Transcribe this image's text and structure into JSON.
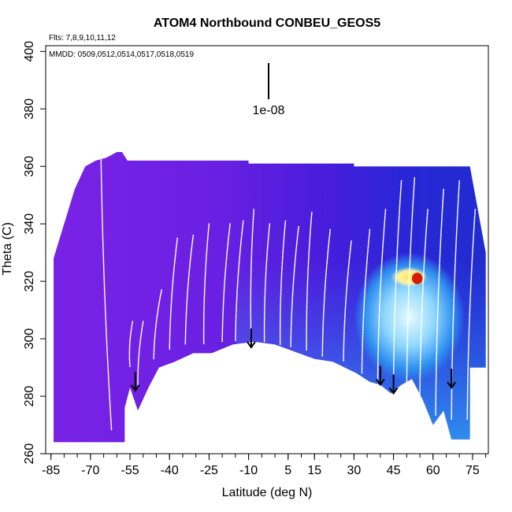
{
  "chart_data": {
    "type": "heatmap",
    "title": "ATOM4 Northbound CONBEU_GEOS5",
    "subtitle_flights": "Flts: 7,8,9,10,11,12",
    "subtitle_dates": "MMDD: 0509,0512,0514,0517,0518,0519",
    "xlabel": "Latitude (deg N)",
    "ylabel": "Theta (C)",
    "xlim": [
      -87,
      81
    ],
    "ylim": [
      260,
      402
    ],
    "xticks": [
      -85,
      -70,
      -55,
      -40,
      -25,
      -10,
      5,
      15,
      30,
      45,
      60,
      75
    ],
    "yticks": [
      260,
      280,
      300,
      320,
      340,
      360,
      380,
      400
    ],
    "scale_bar_label": "1e-08",
    "colors": {
      "low": "#7a22e6",
      "mid": "#3f1fd9",
      "blue": "#1e2fd6",
      "light_blue": "#2f9cf0",
      "cyan": "#bff0ff",
      "yellow": "#ffe14a",
      "orange": "#ff8a00",
      "red": "#d91a00",
      "track": "#ffffff"
    },
    "curtain_top": [
      [
        -84,
        328
      ],
      [
        -80,
        340
      ],
      [
        -76,
        352
      ],
      [
        -72,
        360
      ],
      [
        -68,
        362
      ],
      [
        -64,
        363
      ],
      [
        -60,
        365
      ],
      [
        -58,
        365
      ],
      [
        -56,
        362
      ],
      [
        -10,
        362
      ],
      [
        -10,
        361
      ],
      [
        30,
        361
      ],
      [
        30,
        360
      ],
      [
        74,
        360
      ],
      [
        80,
        330
      ],
      [
        80,
        310
      ]
    ],
    "curtain_bottom": [
      [
        -84,
        264
      ],
      [
        -57,
        264
      ],
      [
        -57,
        276
      ],
      [
        -55,
        283
      ],
      [
        -52,
        275
      ],
      [
        -48,
        283
      ],
      [
        -44,
        290
      ],
      [
        -38,
        292
      ],
      [
        -31,
        295
      ],
      [
        -24,
        295
      ],
      [
        -16,
        298
      ],
      [
        -8,
        299
      ],
      [
        0,
        298
      ],
      [
        6,
        296
      ],
      [
        15,
        293
      ],
      [
        22,
        292
      ],
      [
        31,
        288
      ],
      [
        36,
        285
      ],
      [
        40,
        284
      ],
      [
        44,
        281
      ],
      [
        48,
        284
      ],
      [
        52,
        286
      ],
      [
        56,
        279
      ],
      [
        60,
        270
      ],
      [
        64,
        275
      ],
      [
        67,
        265
      ],
      [
        74,
        265
      ],
      [
        74,
        290
      ],
      [
        80,
        290
      ]
    ],
    "arrows": [
      {
        "lat": -53,
        "theta": 282
      },
      {
        "lat": -9,
        "theta": 297
      },
      {
        "lat": 40,
        "theta": 284
      },
      {
        "lat": 45,
        "theta": 281
      },
      {
        "lat": 67,
        "theta": 283
      }
    ],
    "features": [
      {
        "name": "cyan-region",
        "lat": [
          30,
          72
        ],
        "theta": [
          285,
          330
        ],
        "color": "cyan"
      },
      {
        "name": "yellow-region",
        "lat": [
          44,
          58
        ],
        "theta": [
          318,
          325
        ],
        "color": "yellow"
      },
      {
        "name": "red-spot",
        "lat": [
          52,
          56
        ],
        "theta": [
          319,
          323
        ],
        "color": "red"
      }
    ],
    "track_profiles": [
      {
        "lat_top": -66,
        "lat_bottom": -62,
        "theta_top": 363,
        "theta_bottom": 268
      },
      {
        "lat_top": -54,
        "lat_bottom": -55,
        "theta_top": 306,
        "theta_bottom": 290
      },
      {
        "lat_top": -50,
        "lat_bottom": -52,
        "theta_top": 306,
        "theta_bottom": 283
      },
      {
        "lat_top": -43,
        "lat_bottom": -46,
        "theta_top": 317,
        "theta_bottom": 293
      },
      {
        "lat_top": -37,
        "lat_bottom": -40,
        "theta_top": 335,
        "theta_bottom": 296
      },
      {
        "lat_top": -31,
        "lat_bottom": -34,
        "theta_top": 336,
        "theta_bottom": 298
      },
      {
        "lat_top": -25,
        "lat_bottom": -27,
        "theta_top": 340,
        "theta_bottom": 298
      },
      {
        "lat_top": -17,
        "lat_bottom": -20,
        "theta_top": 340,
        "theta_bottom": 299
      },
      {
        "lat_top": -12,
        "lat_bottom": -15,
        "theta_top": 341,
        "theta_bottom": 299
      },
      {
        "lat_top": -8,
        "lat_bottom": -9,
        "theta_top": 345,
        "theta_bottom": 298
      },
      {
        "lat_top": -2,
        "lat_bottom": -4,
        "theta_top": 340,
        "theta_bottom": 299
      },
      {
        "lat_top": 4,
        "lat_bottom": 2,
        "theta_top": 341,
        "theta_bottom": 298
      },
      {
        "lat_top": 9,
        "lat_bottom": 6,
        "theta_top": 339,
        "theta_bottom": 297
      },
      {
        "lat_top": 14,
        "lat_bottom": 12,
        "theta_top": 344,
        "theta_bottom": 296
      },
      {
        "lat_top": 21,
        "lat_bottom": 18,
        "theta_top": 338,
        "theta_bottom": 294
      },
      {
        "lat_top": 29,
        "lat_bottom": 26,
        "theta_top": 334,
        "theta_bottom": 292
      },
      {
        "lat_top": 36,
        "lat_bottom": 33,
        "theta_top": 338,
        "theta_bottom": 288
      },
      {
        "lat_top": 42,
        "lat_bottom": 39,
        "theta_top": 345,
        "theta_bottom": 285
      },
      {
        "lat_top": 48,
        "lat_bottom": 45,
        "theta_top": 355,
        "theta_bottom": 284
      },
      {
        "lat_top": 53,
        "lat_bottom": 50,
        "theta_top": 356,
        "theta_bottom": 282
      },
      {
        "lat_top": 58,
        "lat_bottom": 55,
        "theta_top": 345,
        "theta_bottom": 280
      },
      {
        "lat_top": 64,
        "lat_bottom": 61,
        "theta_top": 352,
        "theta_bottom": 273
      },
      {
        "lat_top": 70,
        "lat_bottom": 67,
        "theta_top": 355,
        "theta_bottom": 272
      },
      {
        "lat_top": 76,
        "lat_bottom": 73,
        "theta_top": 345,
        "theta_bottom": 272
      }
    ]
  }
}
